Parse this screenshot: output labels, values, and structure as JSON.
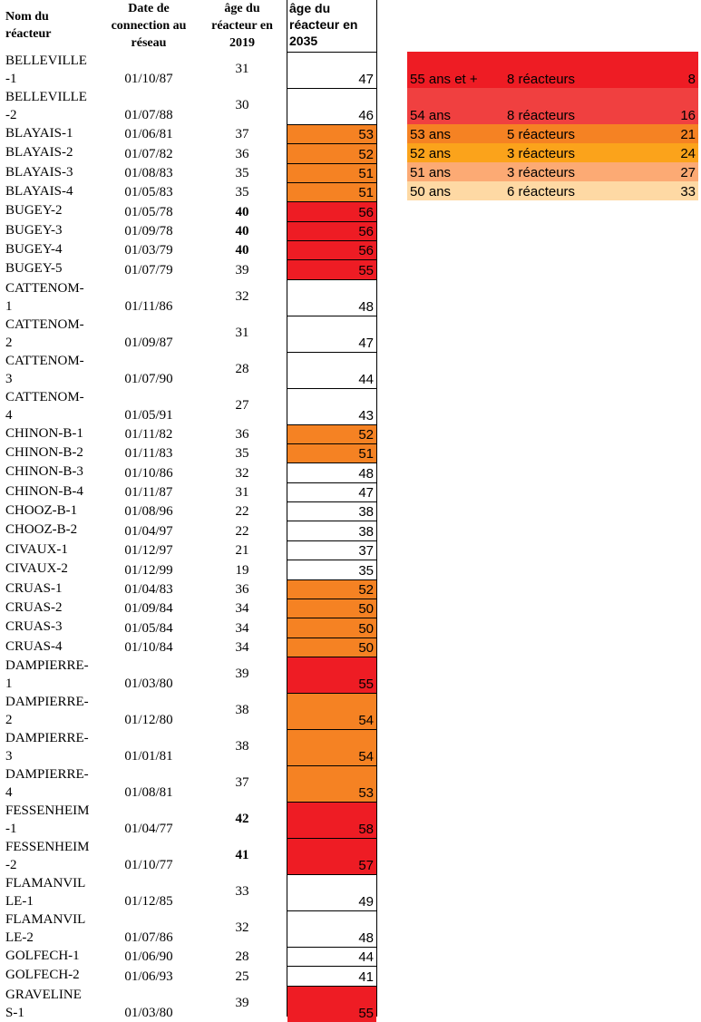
{
  "headers": {
    "name": "Nom du réacteur",
    "date": "Date de connection au réseau",
    "age2019": "âge du réacteur en 2019",
    "age2035": "âge du réacteur en 2035"
  },
  "colors": {
    "red": "#ee1c24",
    "lightred": "#f04040",
    "orange": "#f58223",
    "amber": "#fba31b",
    "salmon": "#fcaa74",
    "peach": "#fed9a4",
    "white": "#ffffff"
  },
  "rows": [
    {
      "name": "BELLEVILLE\n-1",
      "date": "01/10/87",
      "age2019": "31",
      "age2035": "47",
      "bold": false,
      "color": "white",
      "tall": true
    },
    {
      "name": "BELLEVILLE\n-2",
      "date": "01/07/88",
      "age2019": "30",
      "age2035": "46",
      "bold": false,
      "color": "white",
      "tall": true
    },
    {
      "name": "BLAYAIS-1",
      "date": "01/06/81",
      "age2019": "37",
      "age2035": "53",
      "bold": false,
      "color": "orange",
      "tall": false
    },
    {
      "name": "BLAYAIS-2",
      "date": "01/07/82",
      "age2019": "36",
      "age2035": "52",
      "bold": false,
      "color": "orange",
      "tall": false
    },
    {
      "name": "BLAYAIS-3",
      "date": "01/08/83",
      "age2019": "35",
      "age2035": "51",
      "bold": false,
      "color": "orange",
      "tall": false
    },
    {
      "name": "BLAYAIS-4",
      "date": "01/05/83",
      "age2019": "35",
      "age2035": "51",
      "bold": false,
      "color": "orange",
      "tall": false
    },
    {
      "name": "BUGEY-2",
      "date": "01/05/78",
      "age2019": "40",
      "age2035": "56",
      "bold": true,
      "color": "red",
      "tall": false
    },
    {
      "name": "BUGEY-3",
      "date": "01/09/78",
      "age2019": "40",
      "age2035": "56",
      "bold": true,
      "color": "red",
      "tall": false
    },
    {
      "name": "BUGEY-4",
      "date": "01/03/79",
      "age2019": "40",
      "age2035": "56",
      "bold": true,
      "color": "red",
      "tall": false
    },
    {
      "name": "BUGEY-5",
      "date": "01/07/79",
      "age2019": "39",
      "age2035": "55",
      "bold": false,
      "color": "red",
      "tall": false
    },
    {
      "name": "CATTENOM-\n1",
      "date": "01/11/86",
      "age2019": "32",
      "age2035": "48",
      "bold": false,
      "color": "white",
      "tall": true
    },
    {
      "name": "CATTENOM-\n2",
      "date": "01/09/87",
      "age2019": "31",
      "age2035": "47",
      "bold": false,
      "color": "white",
      "tall": true
    },
    {
      "name": "CATTENOM-\n3",
      "date": "01/07/90",
      "age2019": "28",
      "age2035": "44",
      "bold": false,
      "color": "white",
      "tall": true
    },
    {
      "name": "CATTENOM-\n4",
      "date": "01/05/91",
      "age2019": "27",
      "age2035": "43",
      "bold": false,
      "color": "white",
      "tall": true
    },
    {
      "name": "CHINON-B-1",
      "date": "01/11/82",
      "age2019": "36",
      "age2035": "52",
      "bold": false,
      "color": "orange",
      "tall": false
    },
    {
      "name": "CHINON-B-2",
      "date": "01/11/83",
      "age2019": "35",
      "age2035": "51",
      "bold": false,
      "color": "orange",
      "tall": false
    },
    {
      "name": "CHINON-B-3",
      "date": "01/10/86",
      "age2019": "32",
      "age2035": "48",
      "bold": false,
      "color": "white",
      "tall": false
    },
    {
      "name": "CHINON-B-4",
      "date": "01/11/87",
      "age2019": "31",
      "age2035": "47",
      "bold": false,
      "color": "white",
      "tall": false
    },
    {
      "name": "CHOOZ-B-1",
      "date": "01/08/96",
      "age2019": "22",
      "age2035": "38",
      "bold": false,
      "color": "white",
      "tall": false
    },
    {
      "name": "CHOOZ-B-2",
      "date": "01/04/97",
      "age2019": "22",
      "age2035": "38",
      "bold": false,
      "color": "white",
      "tall": false
    },
    {
      "name": "CIVAUX-1",
      "date": "01/12/97",
      "age2019": "21",
      "age2035": "37",
      "bold": false,
      "color": "white",
      "tall": false
    },
    {
      "name": "CIVAUX-2",
      "date": "01/12/99",
      "age2019": "19",
      "age2035": "35",
      "bold": false,
      "color": "white",
      "tall": false
    },
    {
      "name": "CRUAS-1",
      "date": "01/04/83",
      "age2019": "36",
      "age2035": "52",
      "bold": false,
      "color": "orange",
      "tall": false
    },
    {
      "name": "CRUAS-2",
      "date": "01/09/84",
      "age2019": "34",
      "age2035": "50",
      "bold": false,
      "color": "orange",
      "tall": false
    },
    {
      "name": "CRUAS-3",
      "date": "01/05/84",
      "age2019": "34",
      "age2035": "50",
      "bold": false,
      "color": "orange",
      "tall": false
    },
    {
      "name": "CRUAS-4",
      "date": "01/10/84",
      "age2019": "34",
      "age2035": "50",
      "bold": false,
      "color": "orange",
      "tall": false
    },
    {
      "name": "DAMPIERRE-\n1",
      "date": "01/03/80",
      "age2019": "39",
      "age2035": "55",
      "bold": false,
      "color": "red",
      "tall": true
    },
    {
      "name": "DAMPIERRE-\n2",
      "date": "01/12/80",
      "age2019": "38",
      "age2035": "54",
      "bold": false,
      "color": "orange",
      "tall": true
    },
    {
      "name": "DAMPIERRE-\n3",
      "date": "01/01/81",
      "age2019": "38",
      "age2035": "54",
      "bold": false,
      "color": "orange",
      "tall": true
    },
    {
      "name": "DAMPIERRE-\n4",
      "date": "01/08/81",
      "age2019": "37",
      "age2035": "53",
      "bold": false,
      "color": "orange",
      "tall": true
    },
    {
      "name": "FESSENHEIM\n-1",
      "date": "01/04/77",
      "age2019": "42",
      "age2035": "58",
      "bold": true,
      "color": "red",
      "tall": true
    },
    {
      "name": "FESSENHEIM\n-2",
      "date": "01/10/77",
      "age2019": "41",
      "age2035": "57",
      "bold": true,
      "color": "red",
      "tall": true
    },
    {
      "name": "FLAMANVIL\nLE-1",
      "date": "01/12/85",
      "age2019": "33",
      "age2035": "49",
      "bold": false,
      "color": "white",
      "tall": true
    },
    {
      "name": "FLAMANVIL\nLE-2",
      "date": "01/07/86",
      "age2019": "32",
      "age2035": "48",
      "bold": false,
      "color": "white",
      "tall": true
    },
    {
      "name": "GOLFECH-1",
      "date": "01/06/90",
      "age2019": "28",
      "age2035": "44",
      "bold": false,
      "color": "white",
      "tall": false
    },
    {
      "name": "GOLFECH-2",
      "date": "01/06/93",
      "age2019": "25",
      "age2035": "41",
      "bold": false,
      "color": "white",
      "tall": false
    },
    {
      "name": "GRAVELINE\nS-1",
      "date": "01/03/80",
      "age2019": "39",
      "age2035": "55",
      "bold": false,
      "color": "red",
      "tall": true
    }
  ],
  "legend": [
    {
      "age": "55 ans et +",
      "count": "8 réacteurs",
      "cumul": "8",
      "color": "red",
      "tall": true
    },
    {
      "age": "54 ans",
      "count": "8 réacteurs",
      "cumul": "16",
      "color": "lightred",
      "tall": true
    },
    {
      "age": "53 ans",
      "count": "5 réacteurs",
      "cumul": "21",
      "color": "orange",
      "tall": false
    },
    {
      "age": "52 ans",
      "count": "3 réacteurs",
      "cumul": "24",
      "color": "amber",
      "tall": false
    },
    {
      "age": "51 ans",
      "count": "3 réacteurs",
      "cumul": "27",
      "color": "salmon",
      "tall": false
    },
    {
      "age": "50 ans",
      "count": "6 réacteurs",
      "cumul": "33",
      "color": "peach",
      "tall": false
    }
  ]
}
